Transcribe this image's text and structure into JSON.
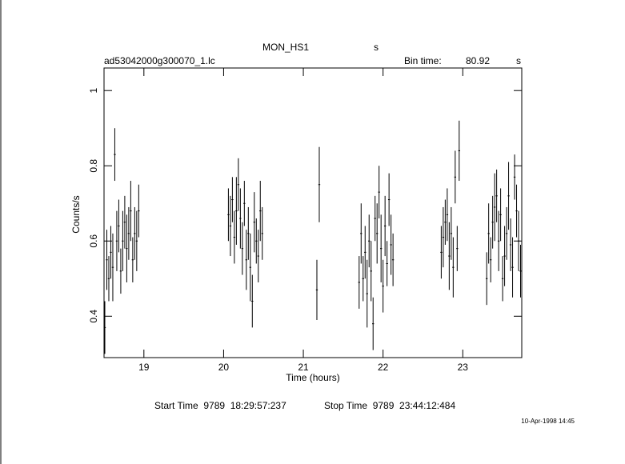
{
  "chart_data": {
    "type": "scatter",
    "title": "MON_HS1",
    "title_unit": "s",
    "subtitle": "ad53042000g300070_1.lc",
    "bin_time_label": "Bin time:",
    "bin_time": "80.92",
    "bin_time_unit": "s",
    "xlabel": "Time (hours)",
    "ylabel": "Counts/s",
    "start_time": "Start Time  9789  18:29:57:237",
    "stop_time": "Stop Time  9789  23:44:12:484",
    "date": "10-Apr-1998 14:45",
    "xlim": [
      18.5,
      23.74
    ],
    "ylim": [
      0.29,
      1.06
    ],
    "xticks": [
      19,
      20,
      21,
      22,
      23
    ],
    "yticks": [
      0.4,
      0.6,
      0.8,
      1
    ],
    "color": "#000000",
    "x": [
      18.51,
      18.535,
      18.56,
      18.585,
      18.61,
      18.635,
      18.66,
      18.685,
      18.71,
      18.735,
      18.76,
      18.785,
      18.81,
      18.835,
      18.86,
      18.885,
      18.91,
      18.935,
      20.06,
      20.085,
      20.11,
      20.135,
      20.16,
      20.185,
      20.21,
      20.235,
      20.26,
      20.285,
      20.31,
      20.335,
      20.36,
      20.385,
      20.41,
      20.435,
      20.46,
      20.485,
      21.17,
      21.2,
      21.7,
      21.725,
      21.75,
      21.775,
      21.8,
      21.825,
      21.85,
      21.875,
      21.9,
      21.925,
      21.95,
      21.975,
      22,
      22.025,
      22.05,
      22.075,
      22.1,
      22.125,
      22.73,
      22.755,
      22.78,
      22.805,
      22.83,
      22.855,
      22.88,
      22.905,
      22.93,
      22.955,
      23.3,
      23.325,
      23.35,
      23.375,
      23.4,
      23.425,
      23.45,
      23.475,
      23.5,
      23.525,
      23.55,
      23.575,
      23.6,
      23.625,
      23.65,
      23.675,
      23.7,
      23.725
    ],
    "values": [
      0.37,
      0.55,
      0.5,
      0.57,
      0.53,
      0.83,
      0.6,
      0.64,
      0.52,
      0.6,
      0.65,
      0.58,
      0.62,
      0.68,
      0.55,
      0.62,
      0.6,
      0.68,
      0.67,
      0.64,
      0.71,
      0.61,
      0.68,
      0.75,
      0.66,
      0.58,
      0.7,
      0.55,
      0.62,
      0.53,
      0.44,
      0.65,
      0.6,
      0.56,
      0.68,
      0.62,
      0.47,
      0.75,
      0.49,
      0.62,
      0.5,
      0.57,
      0.46,
      0.6,
      0.52,
      0.38,
      0.66,
      0.62,
      0.73,
      0.58,
      0.48,
      0.64,
      0.54,
      0.71,
      0.59,
      0.55,
      0.57,
      0.61,
      0.65,
      0.67,
      0.56,
      0.62,
      0.53,
      0.77,
      0.58,
      0.84,
      0.5,
      0.62,
      0.55,
      0.65,
      0.69,
      0.72,
      0.6,
      0.67,
      0.5,
      0.56,
      0.62,
      0.72,
      0.59,
      0.53,
      0.77,
      0.68,
      0.6,
      0.52
    ],
    "errors": [
      0.07,
      0.08,
      0.06,
      0.07,
      0.09,
      0.07,
      0.08,
      0.07,
      0.06,
      0.08,
      0.07,
      0.09,
      0.07,
      0.08,
      0.06,
      0.07,
      0.08,
      0.07,
      0.07,
      0.08,
      0.06,
      0.07,
      0.09,
      0.07,
      0.08,
      0.07,
      0.06,
      0.08,
      0.07,
      0.09,
      0.07,
      0.08,
      0.06,
      0.07,
      0.08,
      0.07,
      0.08,
      0.1,
      0.07,
      0.08,
      0.06,
      0.07,
      0.09,
      0.07,
      0.08,
      0.07,
      0.06,
      0.08,
      0.07,
      0.09,
      0.07,
      0.08,
      0.06,
      0.07,
      0.08,
      0.07,
      0.07,
      0.08,
      0.06,
      0.07,
      0.09,
      0.07,
      0.08,
      0.07,
      0.06,
      0.08,
      0.07,
      0.08,
      0.06,
      0.07,
      0.09,
      0.07,
      0.08,
      0.07,
      0.06,
      0.08,
      0.07,
      0.09,
      0.07,
      0.08,
      0.06,
      0.07,
      0.08,
      0.07
    ]
  }
}
